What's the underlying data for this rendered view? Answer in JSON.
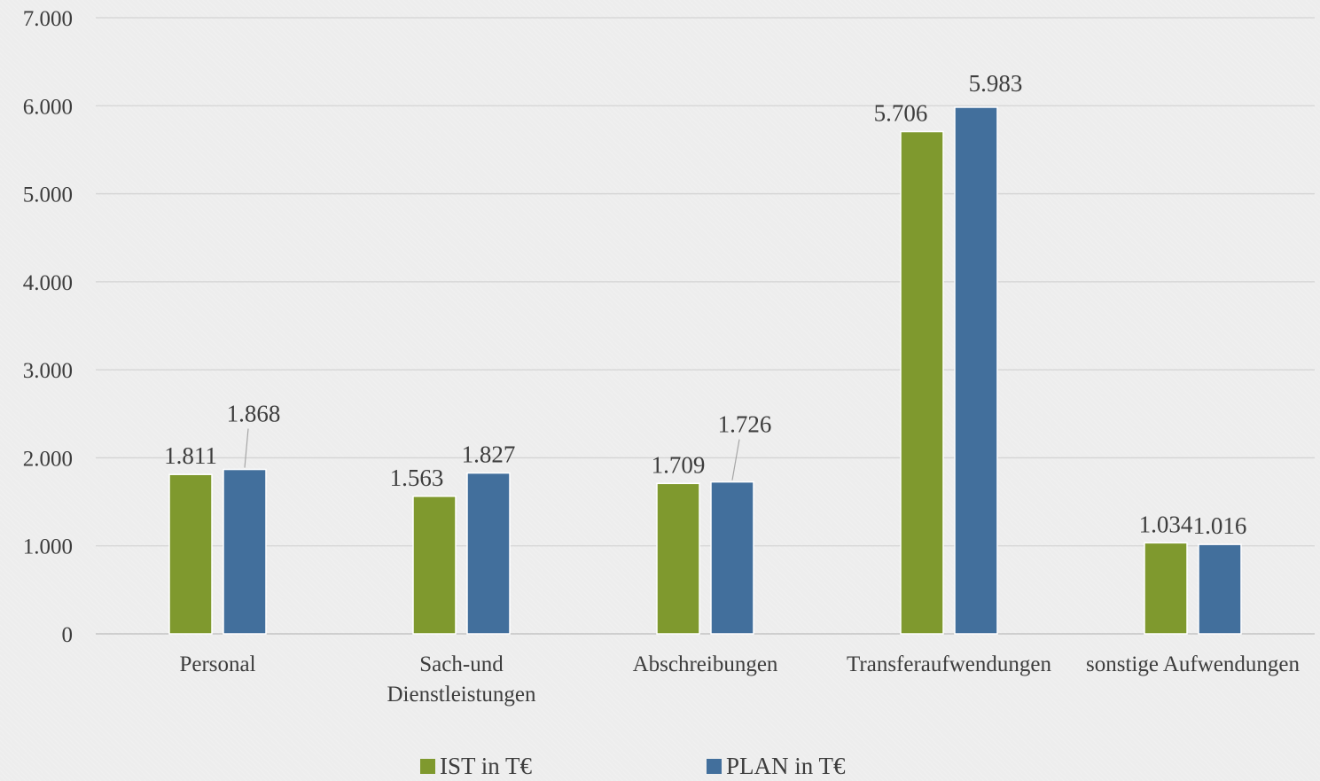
{
  "chart_data": {
    "type": "bar",
    "categories": [
      [
        "Personal"
      ],
      [
        "Sach-und",
        "Dienstleistungen"
      ],
      [
        "Abschreibungen"
      ],
      [
        "Transferaufwendungen"
      ],
      [
        "sonstige Aufwendungen"
      ]
    ],
    "series": [
      {
        "name": "IST in T€",
        "color": "#7f992e",
        "values": [
          1811,
          1563,
          1709,
          5706,
          1034
        ]
      },
      {
        "name": "PLAN in T€",
        "color": "#426f9c",
        "values": [
          1868,
          1827,
          1726,
          5983,
          1016
        ]
      }
    ],
    "data_labels": [
      [
        "1.811",
        "1.563",
        "1.709",
        "5.706",
        "1.034"
      ],
      [
        "1.868",
        "1.827",
        "1.726",
        "5.983",
        "1.016"
      ]
    ],
    "ylim": [
      0,
      7000
    ],
    "yticks": [
      0,
      1000,
      2000,
      3000,
      4000,
      5000,
      6000,
      7000
    ],
    "ytick_labels": [
      "0",
      "1.000",
      "2.000",
      "3.000",
      "4.000",
      "5.000",
      "6.000",
      "7.000"
    ],
    "grid": true,
    "legend_position": "bottom"
  }
}
